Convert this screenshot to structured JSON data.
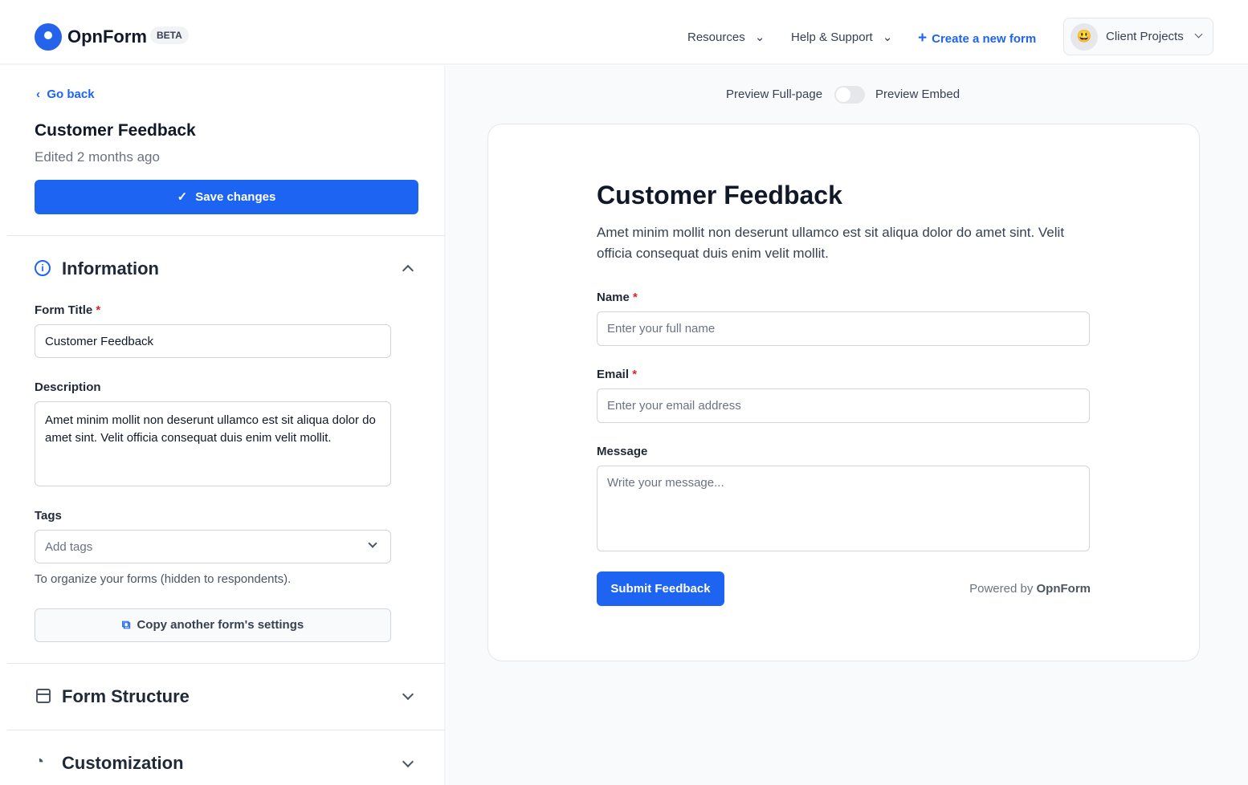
{
  "nav": {
    "brand": "OpnForm",
    "badge": "BETA",
    "resources": "Resources",
    "help": "Help & Support",
    "create": "Create a new form",
    "workspace": "Client Projects",
    "workspace_emoji": "😃",
    "accent": "#1d64f2"
  },
  "sidebar": {
    "go_back": "Go back",
    "title": "Customer Feedback",
    "edited": "Edited 2 months ago",
    "save": "Save changes",
    "info_section": "Information",
    "form_title_label": "Form Title",
    "form_title_value": "Customer Feedback",
    "description_label": "Description",
    "description_value": "Amet minim mollit non deserunt ullamco est sit aliqua dolor do amet sint. Velit officia consequat duis enim velit mollit.",
    "tags_label": "Tags",
    "tags_placeholder": "Add tags",
    "tags_help": "To organize your forms (hidden to respondents).",
    "copy_settings": "Copy another form's settings",
    "structure_section": "Form Structure",
    "custom_section": "Customization",
    "required_mark": "*"
  },
  "preview": {
    "full_page": "Preview Full-page",
    "embed": "Preview Embed",
    "embed_enabled": false,
    "title": "Customer Feedback",
    "description": "Amet minim mollit non deserunt ullamco est sit aliqua dolor do amet sint. Velit officia consequat duis enim velit mollit.",
    "fields": [
      {
        "label": "Name",
        "required": "*",
        "placeholder": "Enter your full name"
      },
      {
        "label": "Email",
        "required": "*",
        "placeholder": "Enter your email address"
      },
      {
        "label": "Message",
        "placeholder": "Write your message..."
      }
    ],
    "submit": "Submit Feedback",
    "powered_by": "Powered by",
    "powered_brand": "OpnForm"
  }
}
